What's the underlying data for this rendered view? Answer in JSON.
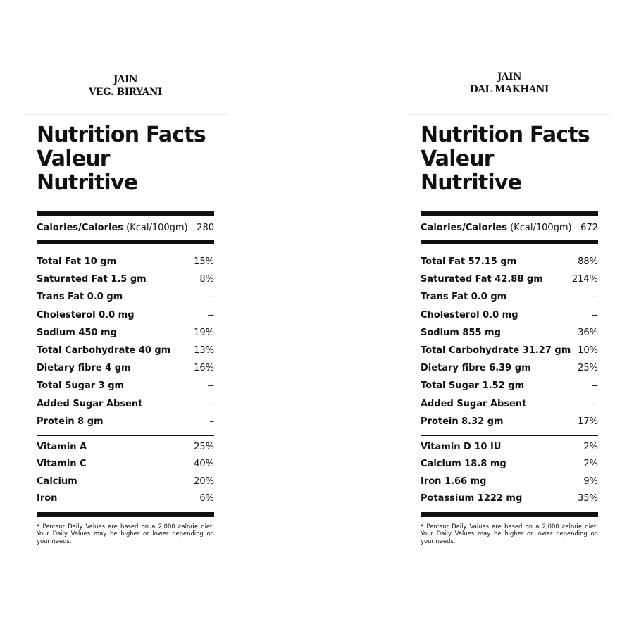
{
  "panels": [
    {
      "dish_line1": "JAIN",
      "dish_line2": "VEG. BIRYANI",
      "title1": "Nutrition Facts",
      "title2": "Valeur Nutritive",
      "calories_label": "Calories/Calories",
      "calories_unit": "(Kcal/100gm)",
      "calories_value": "280",
      "nutrients": [
        [
          "Total Fat 10 gm",
          "15%"
        ],
        [
          "Saturated Fat 1.5 gm",
          "8%"
        ],
        [
          "Trans Fat 0.0 gm",
          "--"
        ],
        [
          "Cholesterol 0.0 mg",
          "--"
        ],
        [
          "Sodium 450 mg",
          "19%"
        ],
        [
          "Total Carbohydrate 40 gm",
          "13%"
        ],
        [
          "Dietary fibre 4 gm",
          "16%"
        ],
        [
          "Total Sugar 3 gm",
          "--"
        ],
        [
          "Added Sugar Absent",
          "--"
        ],
        [
          "Protein 8 gm",
          "–"
        ]
      ],
      "vitamins": [
        [
          "Vitamin A",
          "25%"
        ],
        [
          "Vitamin C",
          "40%"
        ],
        [
          "Calcium",
          "20%"
        ],
        [
          "Iron",
          "6%"
        ]
      ],
      "footnote": "* Percent Daily Values are based on a 2,000 calorie diet. Your Daily Values may be higher or lower depending on your needs."
    },
    {
      "dish_line1": "JAIN",
      "dish_line2": "DAL MAKHANI",
      "title1": "Nutrition Facts",
      "title2": "Valeur Nutritive",
      "calories_label": "Calories/Calories",
      "calories_unit": "(Kcal/100gm)",
      "calories_value": "672",
      "nutrients": [
        [
          "Total Fat 57.15 gm",
          "88%"
        ],
        [
          "Saturated Fat 42.88 gm",
          "214%"
        ],
        [
          "Trans Fat 0.0 gm",
          "--"
        ],
        [
          "Cholesterol 0.0 mg",
          "--"
        ],
        [
          "Sodium 855 mg",
          "36%"
        ],
        [
          "Total Carbohydrate 31.27 gm",
          "10%"
        ],
        [
          "Dietary fibre 6.39 gm",
          "25%"
        ],
        [
          "Total Sugar 1.52 gm",
          "--"
        ],
        [
          "Added Sugar Absent",
          "--"
        ],
        [
          "Protein 8.32 gm",
          "17%"
        ]
      ],
      "vitamins": [
        [
          "Vitamin D 10 IU",
          "2%"
        ],
        [
          "Calcium 18.8 mg",
          "2%"
        ],
        [
          "Iron 1.66 mg",
          "9%"
        ],
        [
          "Potassium 1222 mg",
          "35%"
        ]
      ],
      "footnote": "* Percent Daily Values are based on a 2,000 calorie diet. Your Daily Values may be higher or lower depending on your needs."
    }
  ]
}
